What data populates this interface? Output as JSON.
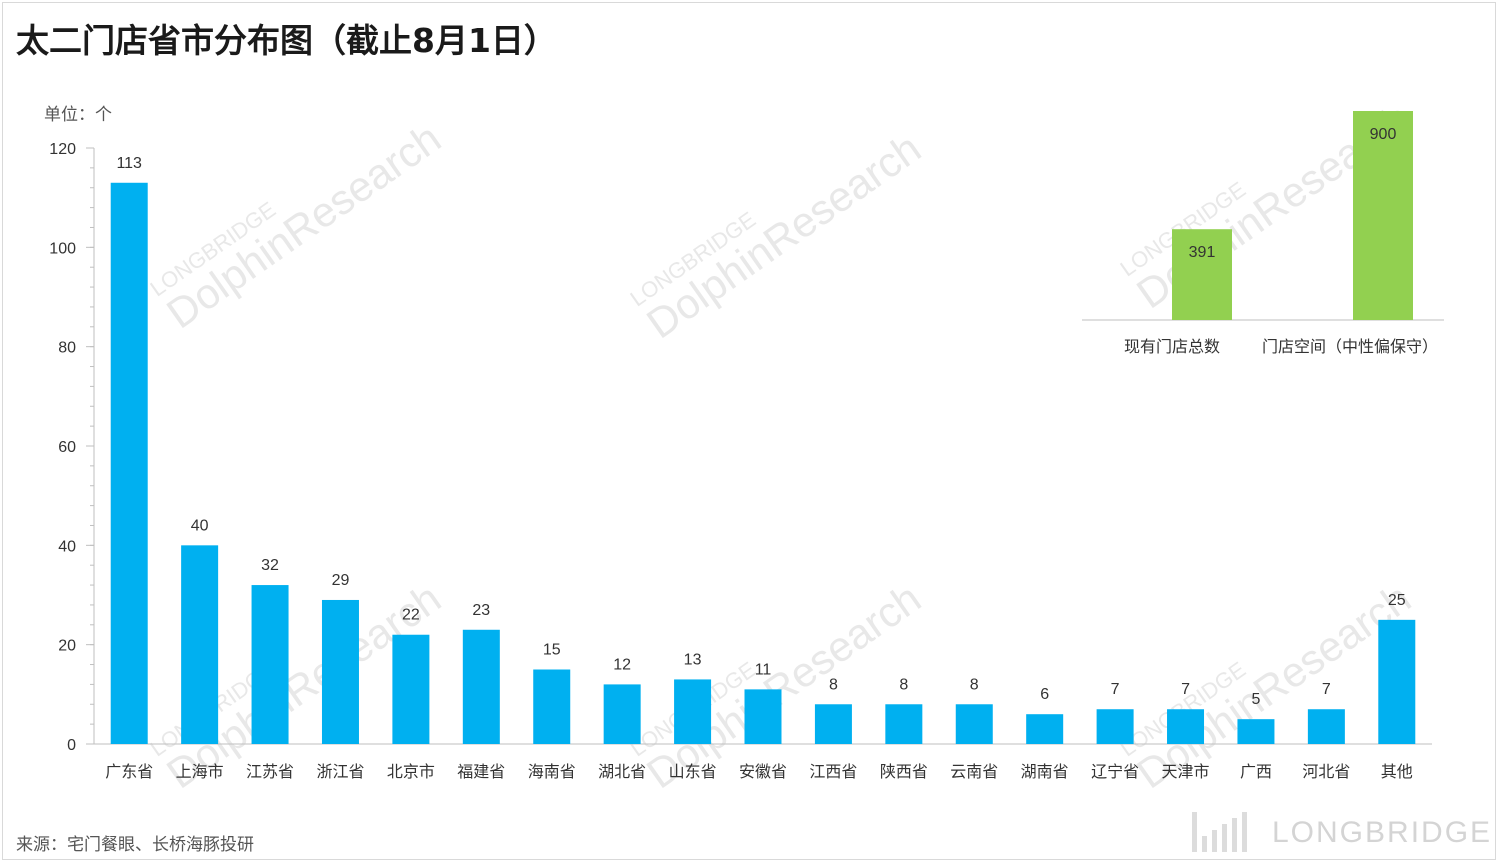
{
  "title": "太二门店省市分布图（截止8月1日）",
  "unit_label": "单位：个",
  "source": "来源：宅门餐眼、长桥海豚投研",
  "colors": {
    "main_bar": "#00b0f0",
    "inset_bar": "#92d050",
    "axis": "#bfbfbf",
    "watermark": "#e6e6e6"
  },
  "chart_data": [
    {
      "type": "bar",
      "title": "",
      "ylabel": "单位：个",
      "xlabel": "",
      "ylim": [
        0,
        120
      ],
      "yticks": [
        0,
        20,
        40,
        60,
        80,
        100,
        120
      ],
      "grid": false,
      "categories": [
        "广东省",
        "上海市",
        "江苏省",
        "浙江省",
        "北京市",
        "福建省",
        "海南省",
        "湖北省",
        "山东省",
        "安徽省",
        "江西省",
        "陕西省",
        "云南省",
        "湖南省",
        "辽宁省",
        "天津市",
        "广西",
        "河北省",
        "其他"
      ],
      "values": [
        113,
        40,
        32,
        29,
        22,
        23,
        15,
        12,
        13,
        11,
        8,
        8,
        8,
        6,
        7,
        7,
        5,
        7,
        25
      ],
      "color": "#00b0f0"
    },
    {
      "type": "bar",
      "title": "",
      "categories": [
        "现有门店总数",
        "门店空间（中性偏保守）"
      ],
      "values": [
        391,
        900
      ],
      "ylim": [
        0,
        900
      ],
      "color": "#92d050"
    }
  ],
  "watermark": {
    "line1": "LONGBRIDGE",
    "line2": "DolphinResearch"
  },
  "brand": "LONGBRIDGE"
}
